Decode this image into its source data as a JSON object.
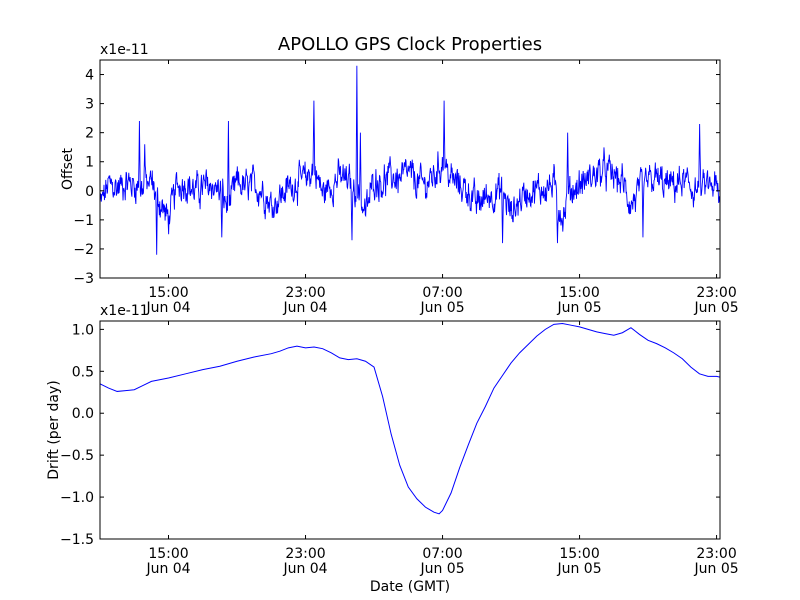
{
  "chart_data": [
    {
      "type": "line",
      "title": "APOLLO GPS Clock Properties",
      "ylabel": "Offset",
      "xlabel": "",
      "scale_label": "x1e-11",
      "ylim": [
        -3,
        4.5
      ],
      "yticks": [
        -3,
        -2,
        -1,
        0,
        1,
        2,
        3,
        4
      ],
      "ytick_labels": [
        "−3",
        "−2",
        "−1",
        "0",
        "1",
        "2",
        "3",
        "4"
      ],
      "xlim_hours": [
        11,
        47.2
      ],
      "xticks": [
        {
          "hour": 15,
          "time": "15:00",
          "date": "Jun 04"
        },
        {
          "hour": 23,
          "time": "23:00",
          "date": "Jun 04"
        },
        {
          "hour": 31,
          "time": "07:00",
          "date": "Jun 05"
        },
        {
          "hour": 39,
          "time": "15:00",
          "date": "Jun 05"
        },
        {
          "hour": 47,
          "time": "23:00",
          "date": "Jun 05"
        }
      ],
      "series": [
        {
          "name": "Offset",
          "color": "#0000ff",
          "noise_amplitude": 0.55,
          "x": [
            11.0,
            11.5,
            12.0,
            12.5,
            13.0,
            13.5,
            14.0,
            14.5,
            15.0,
            15.5,
            16.0,
            16.5,
            17.0,
            17.5,
            18.0,
            18.5,
            19.0,
            19.5,
            20.0,
            20.5,
            21.0,
            21.5,
            22.0,
            22.5,
            23.0,
            23.5,
            24.0,
            24.5,
            25.0,
            25.5,
            26.0,
            26.5,
            27.0,
            27.5,
            28.0,
            28.5,
            29.0,
            29.5,
            30.0,
            30.5,
            31.0,
            31.5,
            32.0,
            32.5,
            33.0,
            33.5,
            34.0,
            34.5,
            35.0,
            35.5,
            36.0,
            36.5,
            37.0,
            37.5,
            38.0,
            38.5,
            39.0,
            39.5,
            40.0,
            40.5,
            41.0,
            41.5,
            42.0,
            42.5,
            43.0,
            43.5,
            44.0,
            44.5,
            45.0,
            45.5,
            46.0,
            46.5,
            47.0,
            47.2
          ],
          "y": [
            -0.5,
            0.2,
            0.1,
            0.3,
            0.2,
            0.1,
            0.3,
            -0.4,
            -1.0,
            0.2,
            0.3,
            0.0,
            0.1,
            0.2,
            0.0,
            -0.6,
            0.3,
            0.1,
            0.2,
            0.0,
            -0.5,
            -0.2,
            0.1,
            0.3,
            0.4,
            0.8,
            -0.1,
            0.2,
            0.5,
            0.3,
            0.0,
            -0.8,
            0.4,
            0.3,
            0.5,
            0.4,
            0.6,
            0.3,
            0.2,
            0.5,
            1.0,
            0.4,
            0.2,
            0.0,
            -0.5,
            -0.2,
            -0.1,
            0.0,
            -0.8,
            -0.3,
            0.0,
            0.0,
            0.1,
            0.2,
            -0.9,
            0.0,
            0.2,
            0.4,
            0.6,
            0.7,
            0.5,
            0.3,
            -0.5,
            0.0,
            0.3,
            0.4,
            0.2,
            0.2,
            0.3,
            0.1,
            0.0,
            0.2,
            0.1,
            -0.6
          ]
        }
      ],
      "peaks": [
        {
          "x": 13.3,
          "y": 2.4
        },
        {
          "x": 13.6,
          "y": 1.6
        },
        {
          "x": 14.3,
          "y": -2.2
        },
        {
          "x": 18.5,
          "y": 2.4
        },
        {
          "x": 18.1,
          "y": -1.6
        },
        {
          "x": 23.5,
          "y": 3.1
        },
        {
          "x": 26.0,
          "y": 4.3
        },
        {
          "x": 25.7,
          "y": -1.7
        },
        {
          "x": 26.2,
          "y": 2.0
        },
        {
          "x": 31.1,
          "y": 3.1
        },
        {
          "x": 34.5,
          "y": -1.8
        },
        {
          "x": 37.7,
          "y": -1.8
        },
        {
          "x": 38.3,
          "y": 2.0
        },
        {
          "x": 42.7,
          "y": -1.6
        },
        {
          "x": 46.0,
          "y": 2.3
        }
      ]
    },
    {
      "type": "line",
      "title": "",
      "ylabel": "Drift (per day)",
      "xlabel": "Date (GMT)",
      "scale_label": "x1e-11",
      "ylim": [
        -1.5,
        1.1
      ],
      "yticks": [
        -1.5,
        -1.0,
        -0.5,
        0.0,
        0.5,
        1.0
      ],
      "ytick_labels": [
        "−1.5",
        "−1.0",
        "−0.5",
        "0.0",
        "0.5",
        "1.0"
      ],
      "xlim_hours": [
        11,
        47.2
      ],
      "xticks": [
        {
          "hour": 15,
          "time": "15:00",
          "date": "Jun 04"
        },
        {
          "hour": 23,
          "time": "23:00",
          "date": "Jun 04"
        },
        {
          "hour": 31,
          "time": "07:00",
          "date": "Jun 05"
        },
        {
          "hour": 39,
          "time": "15:00",
          "date": "Jun 05"
        },
        {
          "hour": 47,
          "time": "23:00",
          "date": "Jun 05"
        }
      ],
      "series": [
        {
          "name": "Drift",
          "color": "#0000ff",
          "x": [
            11.0,
            11.5,
            12.0,
            12.5,
            13.0,
            13.5,
            14.0,
            15.0,
            16.0,
            17.0,
            18.0,
            19.0,
            20.0,
            21.0,
            21.5,
            22.0,
            22.5,
            23.0,
            23.5,
            24.0,
            24.5,
            25.0,
            25.5,
            26.0,
            26.5,
            27.0,
            27.5,
            28.0,
            28.5,
            29.0,
            29.5,
            30.0,
            30.5,
            30.8,
            31.0,
            31.5,
            32.0,
            32.5,
            33.0,
            33.5,
            34.0,
            34.5,
            35.0,
            35.5,
            36.0,
            36.5,
            37.0,
            37.5,
            38.0,
            38.5,
            39.0,
            39.5,
            40.0,
            40.5,
            41.0,
            41.5,
            42.0,
            42.5,
            43.0,
            43.5,
            44.0,
            44.5,
            45.0,
            45.5,
            46.0,
            46.5,
            47.0,
            47.2
          ],
          "y": [
            0.35,
            0.3,
            0.26,
            0.27,
            0.28,
            0.33,
            0.38,
            0.42,
            0.47,
            0.52,
            0.56,
            0.62,
            0.67,
            0.71,
            0.74,
            0.78,
            0.8,
            0.78,
            0.79,
            0.77,
            0.72,
            0.66,
            0.64,
            0.65,
            0.62,
            0.55,
            0.2,
            -0.25,
            -0.62,
            -0.88,
            -1.02,
            -1.12,
            -1.18,
            -1.2,
            -1.16,
            -0.95,
            -0.65,
            -0.38,
            -0.12,
            0.08,
            0.3,
            0.45,
            0.6,
            0.72,
            0.82,
            0.92,
            1.0,
            1.06,
            1.07,
            1.05,
            1.03,
            1.0,
            0.97,
            0.95,
            0.93,
            0.96,
            1.02,
            0.94,
            0.87,
            0.83,
            0.78,
            0.72,
            0.65,
            0.55,
            0.47,
            0.44,
            0.44,
            0.43
          ]
        }
      ]
    }
  ]
}
